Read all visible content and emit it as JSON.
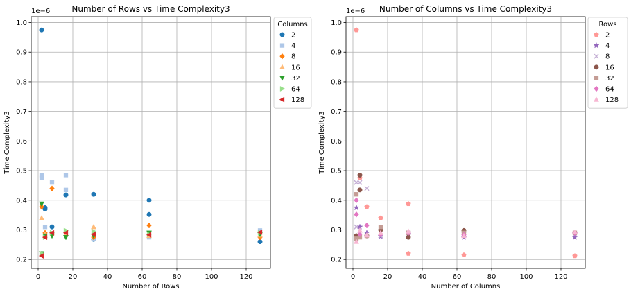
{
  "chart_data": [
    {
      "type": "scatter",
      "title": "Number of Rows vs Time Complexity3",
      "xlabel": "Number of Rows",
      "ylabel": "Time Complexity3",
      "offset_label": "1e−6",
      "xlim": [
        -4,
        134
      ],
      "ylim": [
        0.17,
        1.02
      ],
      "xticks": [
        0,
        20,
        40,
        60,
        80,
        100,
        120
      ],
      "yticks": [
        0.2,
        0.3,
        0.4,
        0.5,
        0.6,
        0.7,
        0.8,
        0.9,
        1.0
      ],
      "ytick_labels": [
        "0.2",
        "0.3",
        "0.4",
        "0.5",
        "0.6",
        "0.7",
        "0.8",
        "0.9",
        "1.0"
      ],
      "grid": true,
      "legend": {
        "title": "Columns",
        "placement": "outside-right-top"
      },
      "series": [
        {
          "name": "2",
          "color": "#1f77b4",
          "marker": "circle",
          "points": [
            [
              2,
              0.975
            ],
            [
              4,
              0.375
            ],
            [
              4,
              0.37
            ],
            [
              8,
              0.31
            ],
            [
              16,
              0.418
            ],
            [
              32,
              0.42
            ],
            [
              32,
              0.268
            ],
            [
              64,
              0.4
            ],
            [
              64,
              0.352
            ],
            [
              128,
              0.26
            ]
          ]
        },
        {
          "name": "4",
          "color": "#aec7e8",
          "marker": "square",
          "points": [
            [
              2,
              0.485
            ],
            [
              2,
              0.475
            ],
            [
              4,
              0.31
            ],
            [
              8,
              0.46
            ],
            [
              16,
              0.485
            ],
            [
              16,
              0.435
            ],
            [
              32,
              0.27
            ],
            [
              64,
              0.275
            ],
            [
              128,
              0.298
            ]
          ]
        },
        {
          "name": "8",
          "color": "#ff7f0e",
          "marker": "diamond",
          "points": [
            [
              2,
              0.378
            ],
            [
              4,
              0.29
            ],
            [
              8,
              0.44
            ],
            [
              16,
              0.28
            ],
            [
              32,
              0.275
            ],
            [
              64,
              0.315
            ],
            [
              128,
              0.275
            ]
          ]
        },
        {
          "name": "16",
          "color": "#ffbb78",
          "marker": "triangle-up",
          "points": [
            [
              2,
              0.34
            ],
            [
              4,
              0.285
            ],
            [
              8,
              0.285
            ],
            [
              16,
              0.285
            ],
            [
              32,
              0.31
            ],
            [
              64,
              0.28
            ],
            [
              128,
              0.282
            ]
          ]
        },
        {
          "name": "32",
          "color": "#2ca02c",
          "marker": "triangle-down",
          "points": [
            [
              2,
              0.388
            ],
            [
              2,
              0.22
            ],
            [
              4,
              0.28
            ],
            [
              8,
              0.28
            ],
            [
              16,
              0.275
            ],
            [
              32,
              0.28
            ],
            [
              64,
              0.29
            ],
            [
              128,
              0.285
            ]
          ]
        },
        {
          "name": "64",
          "color": "#98df8a",
          "marker": "triangle-right",
          "points": [
            [
              2,
              0.22
            ],
            [
              4,
              0.275
            ],
            [
              8,
              0.29
            ],
            [
              16,
              0.298
            ],
            [
              32,
              0.295
            ],
            [
              64,
              0.285
            ],
            [
              128,
              0.29
            ]
          ]
        },
        {
          "name": "128",
          "color": "#d62728",
          "marker": "triangle-left",
          "points": [
            [
              2,
              0.212
            ],
            [
              4,
              0.275
            ],
            [
              8,
              0.29
            ],
            [
              16,
              0.29
            ],
            [
              32,
              0.285
            ],
            [
              64,
              0.283
            ],
            [
              128,
              0.292
            ]
          ]
        }
      ]
    },
    {
      "type": "scatter",
      "title": "Number of Columns vs Time Complexity3",
      "xlabel": "Number of Columns",
      "ylabel": "Time Complexity3",
      "offset_label": "1e−6",
      "xlim": [
        -4,
        134
      ],
      "ylim": [
        0.17,
        1.02
      ],
      "xticks": [
        0,
        20,
        40,
        60,
        80,
        100,
        120
      ],
      "yticks": [
        0.2,
        0.3,
        0.4,
        0.5,
        0.6,
        0.7,
        0.8,
        0.9,
        1.0
      ],
      "ytick_labels": [
        "0.2",
        "0.3",
        "0.4",
        "0.5",
        "0.6",
        "0.7",
        "0.8",
        "0.9",
        "1.0"
      ],
      "grid": true,
      "legend": {
        "title": "Rows",
        "placement": "outside-right-top"
      },
      "series": [
        {
          "name": "2",
          "color": "#ff9896",
          "marker": "pentagon",
          "points": [
            [
              2,
              0.975
            ],
            [
              4,
              0.475
            ],
            [
              8,
              0.378
            ],
            [
              16,
              0.34
            ],
            [
              32,
              0.388
            ],
            [
              32,
              0.22
            ],
            [
              64,
              0.215
            ],
            [
              128,
              0.212
            ]
          ]
        },
        {
          "name": "4",
          "color": "#9467bd",
          "marker": "star",
          "points": [
            [
              2,
              0.375
            ],
            [
              4,
              0.31
            ],
            [
              8,
              0.29
            ],
            [
              16,
              0.278
            ],
            [
              32,
              0.285
            ],
            [
              64,
              0.275
            ],
            [
              128,
              0.275
            ]
          ]
        },
        {
          "name": "8",
          "color": "#c5b0d5",
          "marker": "x",
          "points": [
            [
              2,
              0.46
            ],
            [
              2,
              0.31
            ],
            [
              4,
              0.46
            ],
            [
              8,
              0.44
            ],
            [
              16,
              0.28
            ],
            [
              32,
              0.29
            ],
            [
              64,
              0.285
            ],
            [
              128,
              0.285
            ]
          ]
        },
        {
          "name": "16",
          "color": "#8c564b",
          "marker": "circle",
          "points": [
            [
              2,
              0.28
            ],
            [
              4,
              0.485
            ],
            [
              4,
              0.435
            ],
            [
              8,
              0.28
            ],
            [
              16,
              0.3
            ],
            [
              32,
              0.275
            ],
            [
              64,
              0.298
            ],
            [
              128,
              0.29
            ]
          ]
        },
        {
          "name": "32",
          "color": "#c49c94",
          "marker": "square",
          "points": [
            [
              2,
              0.42
            ],
            [
              2,
              0.27
            ],
            [
              4,
              0.275
            ],
            [
              8,
              0.28
            ],
            [
              16,
              0.31
            ],
            [
              32,
              0.29
            ],
            [
              64,
              0.29
            ],
            [
              128,
              0.29
            ]
          ]
        },
        {
          "name": "64",
          "color": "#e377c2",
          "marker": "diamond",
          "points": [
            [
              2,
              0.4
            ],
            [
              2,
              0.352
            ],
            [
              4,
              0.285
            ],
            [
              8,
              0.315
            ],
            [
              16,
              0.285
            ],
            [
              32,
              0.29
            ],
            [
              64,
              0.283
            ],
            [
              128,
              0.29
            ]
          ]
        },
        {
          "name": "128",
          "color": "#f7b6d2",
          "marker": "triangle-up",
          "points": [
            [
              2,
              0.26
            ],
            [
              4,
              0.298
            ],
            [
              8,
              0.282
            ],
            [
              16,
              0.29
            ],
            [
              32,
              0.295
            ],
            [
              64,
              0.28
            ],
            [
              128,
              0.292
            ]
          ]
        }
      ]
    }
  ]
}
